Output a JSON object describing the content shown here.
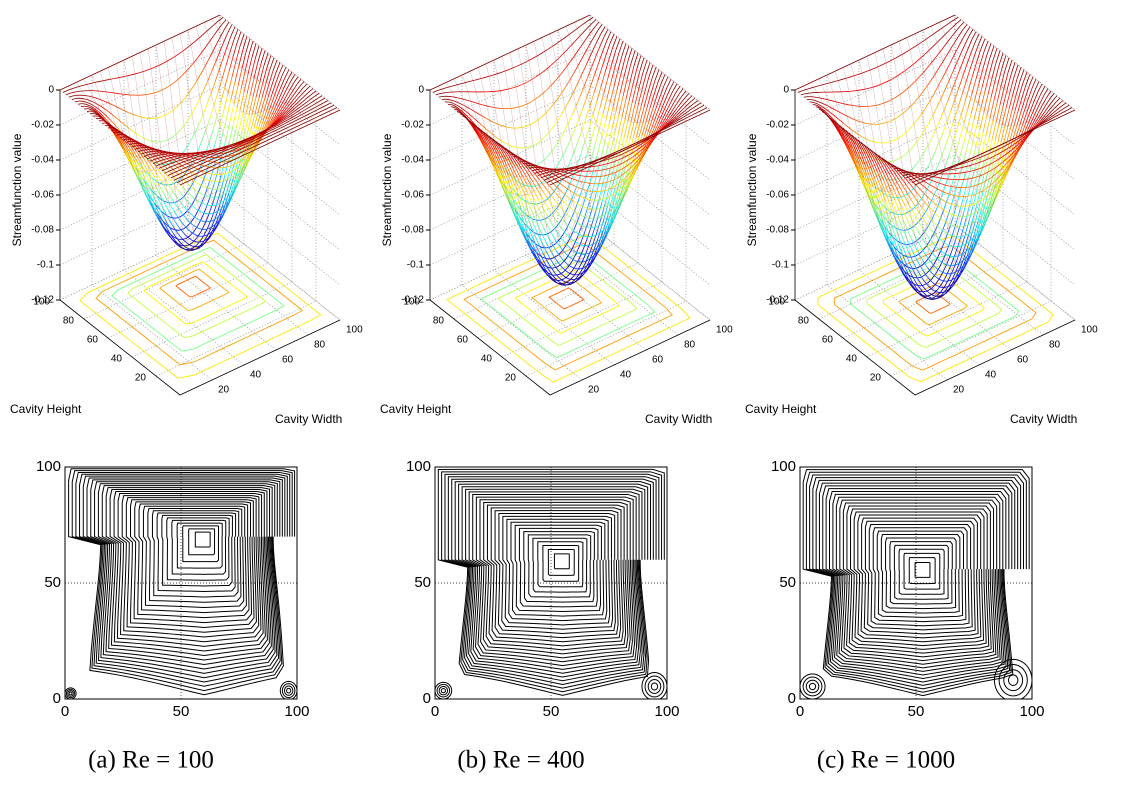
{
  "panels": [
    {
      "surface": {
        "zlabel": "Streamfunction value",
        "zticks": [
          0,
          -0.02,
          -0.04,
          -0.06,
          -0.08,
          -0.1,
          -0.12
        ],
        "height_label": "Cavity Height",
        "height_ticks": [
          20,
          40,
          60,
          80,
          100
        ],
        "width_label": "Cavity Width",
        "width_ticks": [
          20,
          40,
          60,
          80,
          100
        ]
      },
      "contour": {
        "xticks": [
          0,
          50,
          100
        ],
        "yticks": [
          0,
          50,
          100
        ]
      },
      "caption": "(a) Re = 100"
    },
    {
      "surface": {
        "zlabel": "Streamfunction value",
        "zticks": [
          0,
          -0.02,
          -0.04,
          -0.06,
          -0.08,
          -0.1,
          -0.12
        ],
        "height_label": "Cavity Height",
        "height_ticks": [
          20,
          40,
          60,
          80,
          100
        ],
        "width_label": "Cavity Width",
        "width_ticks": [
          20,
          40,
          60,
          80,
          100
        ]
      },
      "contour": {
        "xticks": [
          0,
          50,
          100
        ],
        "yticks": [
          0,
          50,
          100
        ]
      },
      "caption": "(b) Re = 400"
    },
    {
      "surface": {
        "zlabel": "Streamfunction value",
        "zticks": [
          0,
          -0.02,
          -0.04,
          -0.06,
          -0.08,
          -0.1,
          -0.12
        ],
        "height_label": "Cavity Height",
        "height_ticks": [
          20,
          40,
          60,
          80,
          100
        ],
        "width_label": "Cavity Width",
        "width_ticks": [
          20,
          40,
          60,
          80,
          100
        ]
      },
      "contour": {
        "xticks": [
          0,
          50,
          100
        ],
        "yticks": [
          0,
          50,
          100
        ]
      },
      "caption": "(c) Re = 1000"
    }
  ]
}
